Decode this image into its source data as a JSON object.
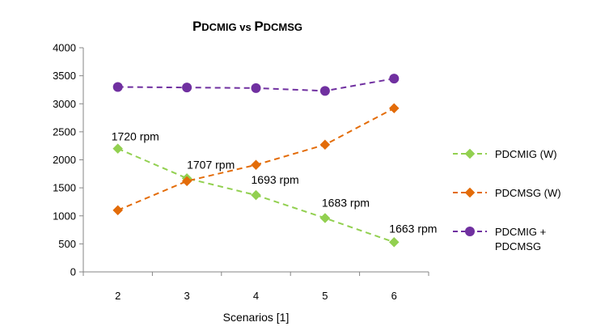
{
  "chart_data": {
    "type": "line",
    "title": "PDCMIG vs PDCMSG",
    "title_parts": [
      {
        "text": "P",
        "big": true
      },
      {
        "text": "DCMIG",
        "big": false
      },
      {
        "text": " vs ",
        "big": false
      },
      {
        "text": "P",
        "big": true
      },
      {
        "text": "DCMSG",
        "big": false
      }
    ],
    "xlabel": "Scenarios [1]",
    "ylabel": "",
    "categories": [
      "2",
      "3",
      "4",
      "5",
      "6"
    ],
    "ylim": [
      0,
      4000
    ],
    "yticks": [
      "0",
      "500",
      "1000",
      "1500",
      "2000",
      "2500",
      "3000",
      "3500",
      "4000"
    ],
    "ytick_values": [
      0,
      500,
      1000,
      1500,
      2000,
      2500,
      3000,
      3500,
      4000
    ],
    "grid": false,
    "legend_position": "right",
    "series": [
      {
        "name": "PDCMIG (W)",
        "values": [
          2200,
          1670,
          1370,
          960,
          530
        ],
        "color": "#92D050",
        "marker": "diamond"
      },
      {
        "name": "PDCMSG (W)",
        "values": [
          1100,
          1620,
          1910,
          2270,
          2920
        ],
        "color": "#E36C09",
        "marker": "diamond"
      },
      {
        "name": "PDCMIG + PDCMSG",
        "name_lines": [
          "PDCMIG +",
          "PDCMSG"
        ],
        "values": [
          3300,
          3290,
          3280,
          3230,
          3450
        ],
        "color": "#7030A0",
        "marker": "circle"
      }
    ],
    "annotations": [
      {
        "category": "2",
        "text": "1720 rpm"
      },
      {
        "category": "3",
        "text": "1707 rpm"
      },
      {
        "category": "4",
        "text": "1693 rpm"
      },
      {
        "category": "5",
        "text": "1683 rpm"
      },
      {
        "category": "6",
        "text": "1663 rpm"
      }
    ]
  }
}
